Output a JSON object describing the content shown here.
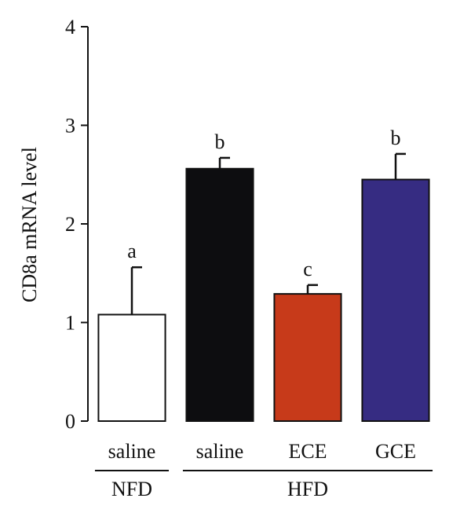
{
  "chart_data": {
    "type": "bar",
    "ylabel": "CD8a mRNA level",
    "ylim": [
      0,
      4
    ],
    "yticks": [
      "0",
      "1",
      "2",
      "3",
      "4"
    ],
    "grid": false,
    "categories": [
      "saline",
      "saline",
      "ECE",
      "GCE"
    ],
    "groups": [
      {
        "label": "NFD",
        "members": [
          0
        ]
      },
      {
        "label": "HFD",
        "members": [
          1,
          2,
          3
        ]
      }
    ],
    "values": [
      1.08,
      2.56,
      1.29,
      2.45
    ],
    "errors": [
      0.48,
      0.11,
      0.09,
      0.26
    ],
    "significance": [
      "a",
      "b",
      "c",
      "b"
    ],
    "colors": [
      "#ffffff",
      "#0d0d10",
      "#c73a1a",
      "#362c82"
    ]
  }
}
